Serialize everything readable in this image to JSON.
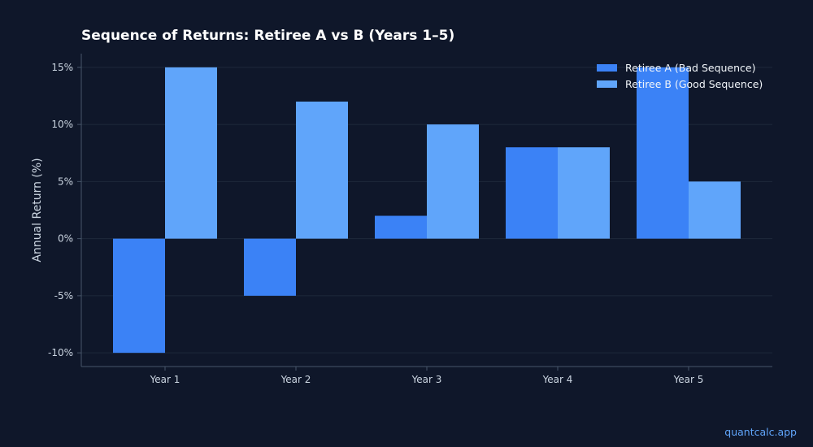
{
  "colors": {
    "background": "#0f172a",
    "series_a": "#3b82f6",
    "series_b": "#60a5fa",
    "grid": "#1e293b",
    "axis": "#475569",
    "text": "#cbd5e1",
    "watermark": "#60a5fa"
  },
  "watermark": "quantcalc.app",
  "chart_data": {
    "type": "bar",
    "title": "Sequence of Returns: Retiree A vs B (Years 1–5)",
    "xlabel": "",
    "ylabel": "Annual Return (%)",
    "categories": [
      "Year 1",
      "Year 2",
      "Year 3",
      "Year 4",
      "Year 5"
    ],
    "series": [
      {
        "name": "Retiree A (Bad Sequence)",
        "values": [
          -10,
          -5,
          2,
          8,
          15
        ]
      },
      {
        "name": "Retiree B (Good Sequence)",
        "values": [
          15,
          12,
          10,
          8,
          5
        ]
      }
    ],
    "ylim": [
      -11.2,
      16.2
    ],
    "yticks": [
      -10,
      -5,
      0,
      5,
      10,
      15
    ],
    "ytick_labels": [
      "-10%",
      "-5%",
      "0%",
      "5%",
      "10%",
      "15%"
    ],
    "grid": true,
    "legend_position": "top-right"
  }
}
